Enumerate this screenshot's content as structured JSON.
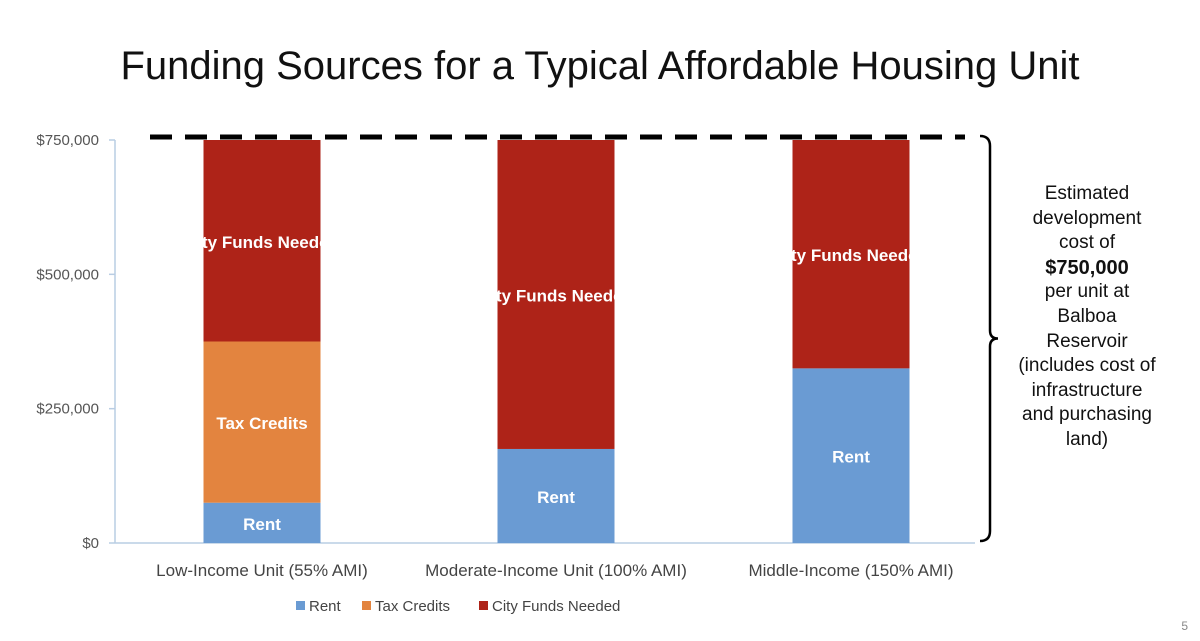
{
  "slide": {
    "title": "Funding Sources for a Typical Affordable Housing Unit",
    "page_number": "5"
  },
  "annotation": {
    "line1": "Estimated",
    "line2": "development",
    "line3": "cost of",
    "cost": "$750,000",
    "line4": "per unit at",
    "line5": "Balboa",
    "line6": "Reservoir",
    "line7": "(includes cost of",
    "line8": "infrastructure",
    "line9": "and purchasing",
    "line10": "land)"
  },
  "colors": {
    "rent": "#6a9bd3",
    "tax_credits": "#e3843f",
    "city_funds": "#ae2318",
    "axis": "#b9cde3",
    "dashed_line": "#000000"
  },
  "chart_data": {
    "type": "bar",
    "stacked": true,
    "title": "Funding Sources for a Typical Affordable Housing Unit",
    "xlabel": "",
    "ylabel": "",
    "ylim": [
      0,
      750000
    ],
    "y_ticks": [
      0,
      250000,
      500000,
      750000
    ],
    "y_tick_labels": [
      "$0",
      "$250,000",
      "$500,000",
      "$750,000"
    ],
    "categories": [
      "Low-Income Unit (55% AMI)",
      "Moderate-Income Unit (100% AMI)",
      "Middle-Income (150% AMI)"
    ],
    "series": [
      {
        "name": "Rent",
        "color_key": "rent",
        "values": [
          75000,
          175000,
          325000
        ],
        "label": "Rent"
      },
      {
        "name": "Tax Credits",
        "color_key": "tax_credits",
        "values": [
          300000,
          0,
          0
        ],
        "label": "Tax Credits"
      },
      {
        "name": "City Funds Needed",
        "color_key": "city_funds",
        "values": [
          375000,
          575000,
          425000
        ],
        "label": "City Funds Needed"
      }
    ],
    "reference_line": {
      "value": 750000,
      "style": "dashed",
      "label": "Estimated development cost"
    },
    "legend": {
      "position": "bottom",
      "entries": [
        "Rent",
        "Tax Credits",
        "City Funds Needed"
      ]
    }
  }
}
